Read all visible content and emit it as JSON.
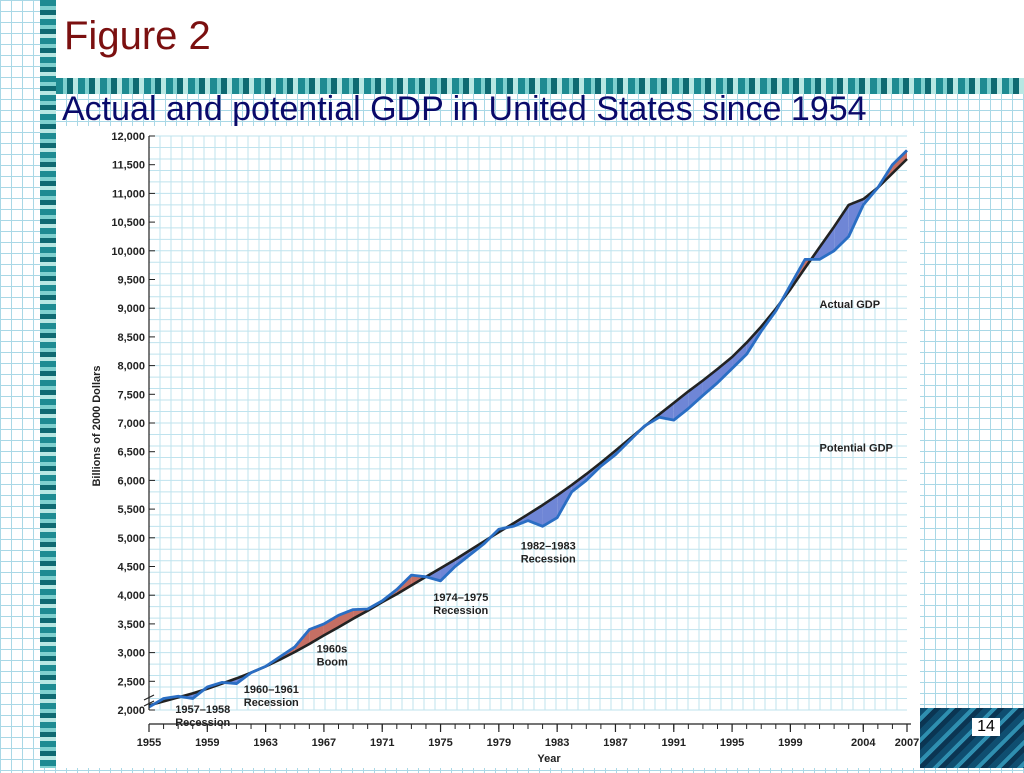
{
  "slide": {
    "title": "Figure 2",
    "subtitle": "Actual and potential GDP in United States since 1954",
    "page_number": "14"
  },
  "colors": {
    "actual": "#2a6ec4",
    "potential": "#222222",
    "fill_below": "#6f86d6",
    "fill_above": "#c56f64",
    "title": "#7b1010",
    "subtitle": "#0a0a6a"
  },
  "chart_data": {
    "type": "line",
    "title": "",
    "xlabel": "Year",
    "ylabel": "Billions of 2000 Dollars",
    "xlim": [
      1955,
      2007
    ],
    "ylim": [
      2000,
      12000
    ],
    "grid": true,
    "x_ticks": [
      "1955",
      "1959",
      "1963",
      "1967",
      "1971",
      "1975",
      "1979",
      "1983",
      "1987",
      "1991",
      "1995",
      "1999",
      "2004",
      "2007"
    ],
    "y_ticks": [
      "2,000",
      "2,500",
      "3,000",
      "3,500",
      "4,000",
      "4,500",
      "5,000",
      "5,500",
      "6,000",
      "6,500",
      "7,000",
      "7,500",
      "8,000",
      "8,500",
      "9,000",
      "9,500",
      "10,000",
      "10,500",
      "11,000",
      "11,500",
      "12,000"
    ],
    "series": [
      {
        "name": "Actual GDP",
        "x": [
          1955,
          1956,
          1957,
          1958,
          1959,
          1960,
          1961,
          1962,
          1963,
          1964,
          1965,
          1966,
          1967,
          1968,
          1969,
          1970,
          1971,
          1972,
          1973,
          1974,
          1975,
          1976,
          1977,
          1978,
          1979,
          1980,
          1981,
          1982,
          1983,
          1984,
          1985,
          1986,
          1987,
          1988,
          1989,
          1990,
          1991,
          1992,
          1993,
          1994,
          1995,
          1996,
          1997,
          1998,
          1999,
          2000,
          2001,
          2002,
          2003,
          2004,
          2005,
          2006,
          2007
        ],
        "y": [
          2050,
          2200,
          2240,
          2200,
          2400,
          2480,
          2460,
          2650,
          2760,
          2930,
          3100,
          3400,
          3500,
          3650,
          3750,
          3760,
          3900,
          4100,
          4350,
          4320,
          4250,
          4500,
          4700,
          4900,
          5150,
          5200,
          5300,
          5200,
          5350,
          5800,
          6000,
          6250,
          6450,
          6700,
          6950,
          7100,
          7050,
          7250,
          7480,
          7700,
          7950,
          8200,
          8600,
          8950,
          9400,
          9850,
          9850,
          10000,
          10250,
          10800,
          11100,
          11500,
          11750
        ]
      },
      {
        "name": "Potential GDP",
        "x": [
          1955,
          1956,
          1957,
          1958,
          1959,
          1960,
          1961,
          1962,
          1963,
          1964,
          1965,
          1966,
          1967,
          1968,
          1969,
          1970,
          1971,
          1972,
          1973,
          1974,
          1975,
          1976,
          1977,
          1978,
          1979,
          1980,
          1981,
          1982,
          1983,
          1984,
          1985,
          1986,
          1987,
          1988,
          1989,
          1990,
          1991,
          1992,
          1993,
          1994,
          1995,
          1996,
          1997,
          1998,
          1999,
          2000,
          2001,
          2002,
          2003,
          2004,
          2005,
          2006,
          2007
        ],
        "y": [
          2080,
          2150,
          2220,
          2290,
          2370,
          2460,
          2550,
          2650,
          2760,
          2880,
          3010,
          3150,
          3300,
          3440,
          3590,
          3730,
          3880,
          4020,
          4170,
          4320,
          4470,
          4620,
          4780,
          4940,
          5100,
          5250,
          5410,
          5570,
          5740,
          5920,
          6110,
          6310,
          6520,
          6730,
          6940,
          7150,
          7350,
          7550,
          7740,
          7940,
          8150,
          8400,
          8680,
          8990,
          9330,
          9700,
          10060,
          10420,
          10800,
          10900,
          11100,
          11350,
          11600
        ]
      }
    ],
    "annotations": [
      {
        "lines": [
          "Actual GDP"
        ],
        "x": 2001,
        "y": 9000
      },
      {
        "lines": [
          "Potential GDP"
        ],
        "x": 2001,
        "y": 6500
      },
      {
        "lines": [
          "1982–1983",
          "Recession"
        ],
        "x": 1980.5,
        "y": 4800
      },
      {
        "lines": [
          "1974–1975",
          "Recession"
        ],
        "x": 1974.5,
        "y": 3900
      },
      {
        "lines": [
          "1960s",
          "Boom"
        ],
        "x": 1966.5,
        "y": 3000
      },
      {
        "lines": [
          "1960–1961",
          "Recession"
        ],
        "x": 1961.5,
        "y": 2300
      },
      {
        "lines": [
          "1957–1958",
          "Recession"
        ],
        "x": 1956.8,
        "y": 1950
      }
    ]
  }
}
